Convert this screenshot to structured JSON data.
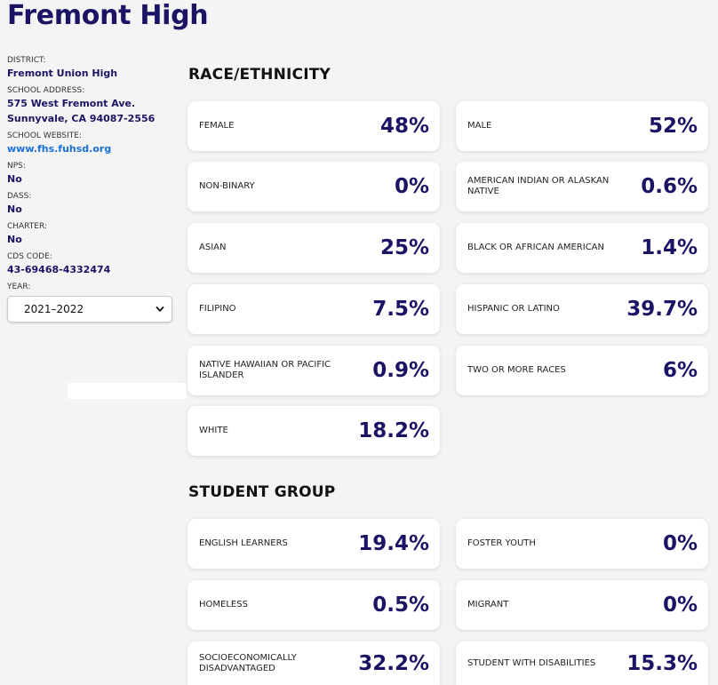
{
  "school": {
    "name": "Fremont High"
  },
  "sidebar": {
    "district_label": "DISTRICT:",
    "district": "Fremont Union High",
    "address_label": "SCHOOL ADDRESS:",
    "address_line1": "575 West Fremont Ave.",
    "address_line2": "Sunnyvale, CA 94087-2556",
    "website_label": "SCHOOL WEBSITE:",
    "website": "www.fhs.fuhsd.org",
    "nps_label": "NPS:",
    "nps": "No",
    "dass_label": "DASS:",
    "dass": "No",
    "charter_label": "CHARTER:",
    "charter": "No",
    "cds_label": "CDS CODE:",
    "cds": "43-69468-4332474",
    "year_label": "YEAR:",
    "year_selected": "2021–2022"
  },
  "race": {
    "title": "RACE/ETHNICITY",
    "cards": [
      {
        "label": "FEMALE",
        "value": "48%"
      },
      {
        "label": "MALE",
        "value": "52%"
      },
      {
        "label": "NON-BINARY",
        "value": "0%"
      },
      {
        "label": "AMERICAN INDIAN OR ALASKAN NATIVE",
        "value": "0.6%"
      },
      {
        "label": "ASIAN",
        "value": "25%"
      },
      {
        "label": "BLACK OR AFRICAN AMERICAN",
        "value": "1.4%"
      },
      {
        "label": "FILIPINO",
        "value": "7.5%"
      },
      {
        "label": "HISPANIC OR LATINO",
        "value": "39.7%"
      },
      {
        "label": "NATIVE HAWAIIAN OR PACIFIC ISLANDER",
        "value": "0.9%"
      },
      {
        "label": "TWO OR MORE RACES",
        "value": "6%"
      },
      {
        "label": "WHITE",
        "value": "18.2%"
      }
    ]
  },
  "student_group": {
    "title": "STUDENT GROUP",
    "cards": [
      {
        "label": "ENGLISH LEARNERS",
        "value": "19.4%"
      },
      {
        "label": "FOSTER YOUTH",
        "value": "0%"
      },
      {
        "label": "HOMELESS",
        "value": "0.5%"
      },
      {
        "label": "MIGRANT",
        "value": "0%"
      },
      {
        "label": "SOCIOECONOMICALLY DISADVANTAGED",
        "value": "32.2%"
      },
      {
        "label": "STUDENT WITH DISABILITIES",
        "value": "15.3%"
      }
    ]
  }
}
